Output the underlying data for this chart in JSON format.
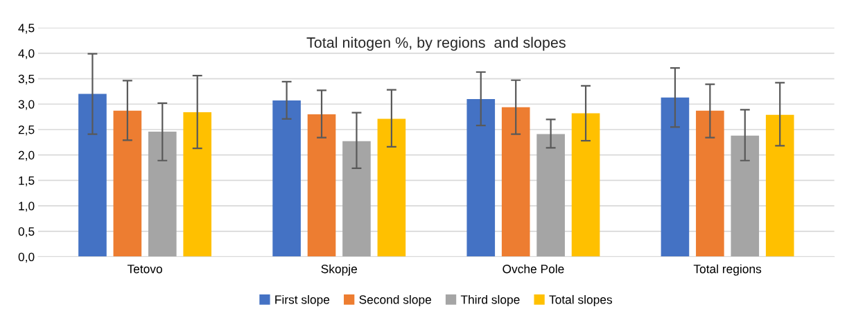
{
  "chart_data": {
    "type": "bar",
    "title": "Total nitogen %, by regions  and slopes",
    "categories": [
      "Tetovo",
      "Skopje",
      "Ovche Pole",
      "Total regions"
    ],
    "series": [
      {
        "name": "First slope",
        "color": "#4472c4",
        "values": [
          3.2,
          3.07,
          3.1,
          3.13
        ],
        "errors": [
          [
            2.41,
            3.99
          ],
          [
            2.71,
            3.44
          ],
          [
            2.58,
            3.63
          ],
          [
            2.55,
            3.71
          ]
        ]
      },
      {
        "name": "Second slope",
        "color": "#ed7d31",
        "values": [
          2.87,
          2.8,
          2.94,
          2.87
        ],
        "errors": [
          [
            2.29,
            3.46
          ],
          [
            2.34,
            3.27
          ],
          [
            2.41,
            3.47
          ],
          [
            2.34,
            3.39
          ]
        ]
      },
      {
        "name": "Third slope",
        "color": "#a5a5a5",
        "values": [
          2.46,
          2.27,
          2.41,
          2.38
        ],
        "errors": [
          [
            1.89,
            3.02
          ],
          [
            1.74,
            2.83
          ],
          [
            2.14,
            2.7
          ],
          [
            1.89,
            2.89
          ]
        ]
      },
      {
        "name": "Total slopes",
        "color": "#ffc000",
        "values": [
          2.84,
          2.71,
          2.82,
          2.79
        ],
        "errors": [
          [
            2.13,
            3.56
          ],
          [
            2.16,
            3.28
          ],
          [
            2.28,
            3.36
          ],
          [
            2.18,
            3.42
          ]
        ]
      }
    ],
    "ylim": [
      0,
      4.5
    ],
    "yticks": [
      {
        "value": 0,
        "label": "0,0"
      },
      {
        "value": 0.5,
        "label": "0,5"
      },
      {
        "value": 1,
        "label": "1,0"
      },
      {
        "value": 1.5,
        "label": "1,5"
      },
      {
        "value": 2,
        "label": "2,0"
      },
      {
        "value": 2.5,
        "label": "2,5"
      },
      {
        "value": 3,
        "label": "3,0"
      },
      {
        "value": 3.5,
        "label": "3,5"
      },
      {
        "value": 4,
        "label": "4,0"
      },
      {
        "value": 4.5,
        "label": "4,5"
      }
    ],
    "grid": "y",
    "legend": "bottom"
  }
}
